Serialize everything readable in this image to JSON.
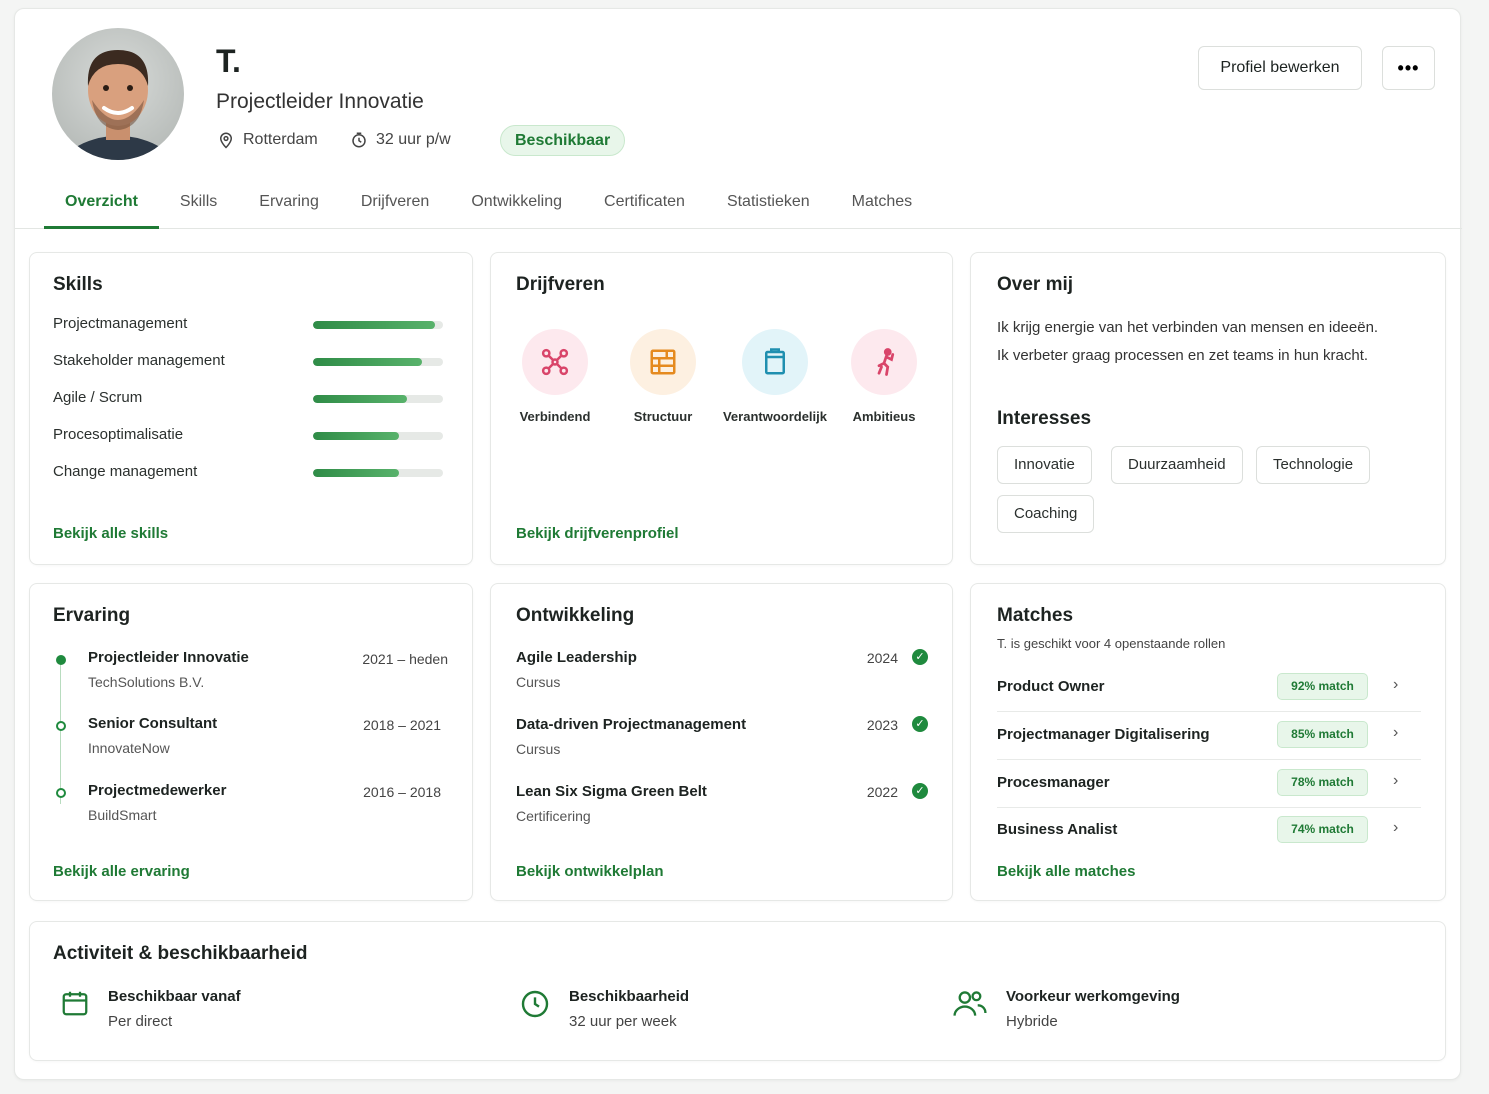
{
  "profile": {
    "name": "T.",
    "role": "Projectleider Innovatie",
    "location": "Rotterdam",
    "hours": "32 uur p/w",
    "status": "Beschikbaar",
    "edit_label": "Profiel bewerken",
    "more_label": "•••"
  },
  "tabs": [
    "Overzicht",
    "Skills",
    "Ervaring",
    "Drijfveren",
    "Ontwikkeling",
    "Certificaten",
    "Statistieken",
    "Matches"
  ],
  "skills": {
    "title": "Skills",
    "items": [
      {
        "label": "Projectmanagement",
        "level": 0.94
      },
      {
        "label": "Stakeholder management",
        "level": 0.84
      },
      {
        "label": "Agile / Scrum",
        "level": 0.72
      },
      {
        "label": "Procesoptimalisatie",
        "level": 0.66
      },
      {
        "label": "Change management",
        "level": 0.66
      }
    ],
    "link": "Bekijk alle skills"
  },
  "drivers": {
    "title": "Drijfveren",
    "items": [
      {
        "label": "Verbindend",
        "icon": "nodes-icon",
        "color": "#d9456a",
        "bg": "#fde9ee"
      },
      {
        "label": "Structuur",
        "icon": "structure-icon",
        "color": "#e58a1f",
        "bg": "#fdf0e1"
      },
      {
        "label": "Verantwoordelijk",
        "icon": "clipboard-icon",
        "color": "#1f8fb0",
        "bg": "#e2f4f9"
      },
      {
        "label": "Ambitieus",
        "icon": "climber-icon",
        "color": "#d9456a",
        "bg": "#fde9ee"
      }
    ],
    "link": "Bekijk drijfverenprofiel"
  },
  "about": {
    "title": "Over mij",
    "lines": [
      "Ik krijg energie van het verbinden van mensen en ideeën.",
      "Ik verbeter graag processen en zet teams in hun kracht."
    ],
    "interests_title": "Interesses",
    "interests": [
      "Innovatie",
      "Duurzaamheid",
      "Technologie",
      "Coaching"
    ]
  },
  "experience": {
    "title": "Ervaring",
    "items": [
      {
        "role": "Projectleider Innovatie",
        "company": "TechSolutions B.V.",
        "period": "2021 – heden"
      },
      {
        "role": "Senior Consultant",
        "company": "InnovateNow",
        "period": "2018 – 2021"
      },
      {
        "role": "Projectmedewerker",
        "company": "BuildSmart",
        "period": "2016 – 2018"
      }
    ],
    "link": "Bekijk alle ervaring"
  },
  "development": {
    "title": "Ontwikkeling",
    "items": [
      {
        "title": "Agile Leadership",
        "type": "Cursus",
        "year": "2024"
      },
      {
        "title": "Data-driven Projectmanagement",
        "type": "Cursus",
        "year": "2023"
      },
      {
        "title": "Lean Six Sigma Green Belt",
        "type": "Certificering",
        "year": "2022"
      }
    ],
    "link": "Bekijk ontwikkelplan"
  },
  "matches": {
    "title": "Matches",
    "subtitle": "T.  is geschikt voor 4 openstaande rollen",
    "items": [
      {
        "title": "Product Owner",
        "score": "92% match"
      },
      {
        "title": "Projectmanager Digitalisering",
        "score": "85% match"
      },
      {
        "title": "Procesmanager",
        "score": "78% match"
      },
      {
        "title": "Business Analist",
        "score": "74% match"
      }
    ],
    "link": "Bekijk alle matches"
  },
  "activity": {
    "title": "Activiteit & beschikbaarheid",
    "items": [
      {
        "label": "Beschikbaar vanaf",
        "value": "Per direct",
        "icon": "calendar-icon"
      },
      {
        "label": "Beschikbaarheid",
        "value": "32 uur per week",
        "icon": "clock-icon"
      },
      {
        "label": "Voorkeur werkomgeving",
        "value": "Hybride",
        "icon": "users-icon"
      }
    ]
  },
  "colors": {
    "accent": "#1f7a35",
    "accent_light": "#e8f6ea"
  }
}
